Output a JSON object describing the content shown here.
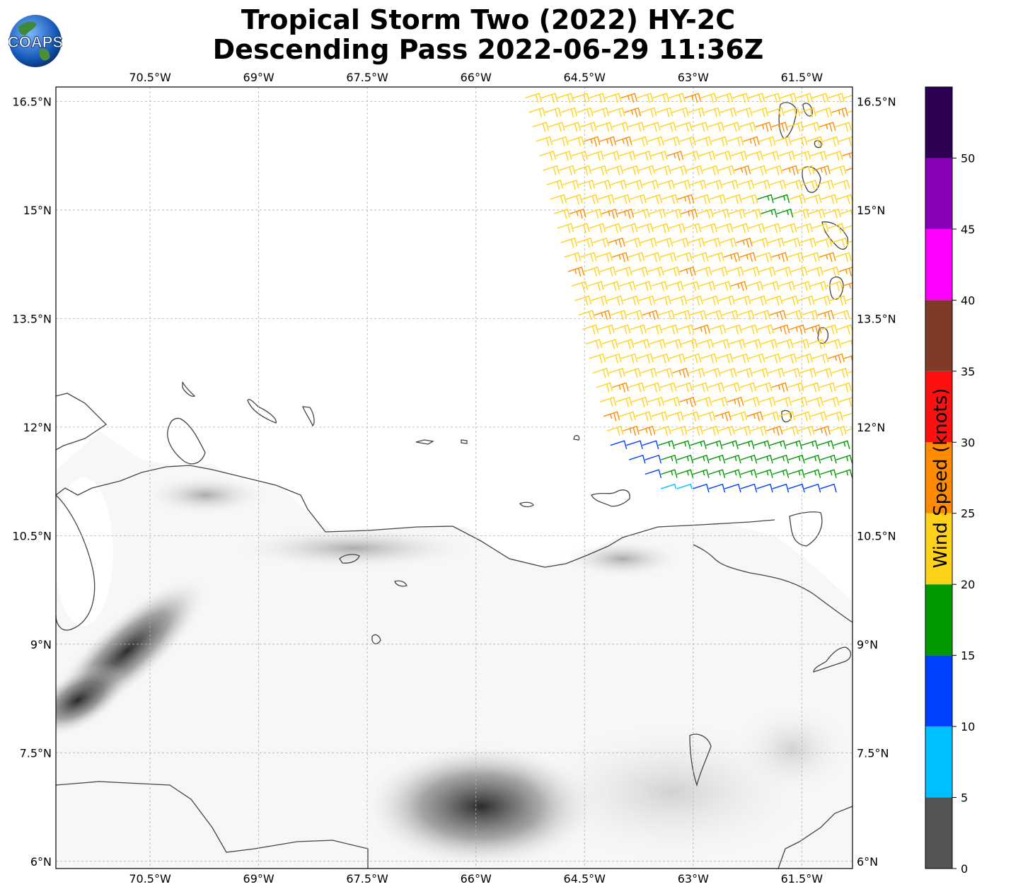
{
  "title_line1": "Tropical Storm Two (2022) HY-2C",
  "title_line2": "Descending Pass 2022-06-29 11:36Z",
  "logo_text": "COAPS",
  "lon_ticks": [
    "70.5°W",
    "69°W",
    "67.5°W",
    "66°W",
    "64.5°W",
    "63°W",
    "61.5°W"
  ],
  "lat_ticks": [
    "16.5°N",
    "15°N",
    "13.5°N",
    "12°N",
    "10.5°N",
    "9°N",
    "7.5°N",
    "6°N"
  ],
  "lon_values": [
    -70.5,
    -69,
    -67.5,
    -66,
    -64.5,
    -63,
    -61.5
  ],
  "lat_values": [
    16.5,
    15,
    13.5,
    12,
    10.5,
    9,
    7.5,
    6
  ],
  "map_extent": {
    "lon_min": -71.8,
    "lon_max": -60.8,
    "lat_min": 5.9,
    "lat_max": 16.7
  },
  "colorbar": {
    "label": "Wind Speed (knots)",
    "ticks": [
      "0",
      "5",
      "10",
      "15",
      "20",
      "25",
      "30",
      "35",
      "40",
      "45",
      "50"
    ],
    "bins": [
      {
        "from": 0,
        "to": 5,
        "color": "#555555"
      },
      {
        "from": 5,
        "to": 10,
        "color": "#00bfff"
      },
      {
        "from": 10,
        "to": 15,
        "color": "#0040ff"
      },
      {
        "from": 15,
        "to": 20,
        "color": "#009900"
      },
      {
        "from": 20,
        "to": 25,
        "color": "#ffd21a"
      },
      {
        "from": 25,
        "to": 30,
        "color": "#ff8c00"
      },
      {
        "from": 30,
        "to": 35,
        "color": "#ff1010"
      },
      {
        "from": 35,
        "to": 40,
        "color": "#7f3b28"
      },
      {
        "from": 40,
        "to": 45,
        "color": "#ff00ff"
      },
      {
        "from": 45,
        "to": 50,
        "color": "#8800b8"
      },
      {
        "from": 50,
        "to": 55,
        "color": "#2e0055"
      }
    ]
  },
  "wind_field": {
    "swath_corners_latlon": [
      [
        16.5,
        -65.3
      ],
      [
        16.5,
        -60.8
      ],
      [
        11.0,
        -60.8
      ],
      [
        11.0,
        -62.5
      ],
      [
        11.3,
        -63.8
      ],
      [
        11.6,
        -64.1
      ]
    ],
    "zones": [
      {
        "name": "main",
        "speed_range": [
          20,
          25
        ],
        "color": "#ffd21a"
      },
      {
        "name": "pockets",
        "speed_range": [
          25,
          30
        ],
        "color": "#ff8c00"
      },
      {
        "name": "south-edge",
        "speed_range": [
          15,
          20
        ],
        "color": "#009900"
      },
      {
        "name": "south-tip",
        "speed_range": [
          10,
          15
        ],
        "color": "#0040ff"
      },
      {
        "name": "light",
        "speed_range": [
          5,
          10
        ],
        "color": "#00bfff"
      }
    ]
  }
}
